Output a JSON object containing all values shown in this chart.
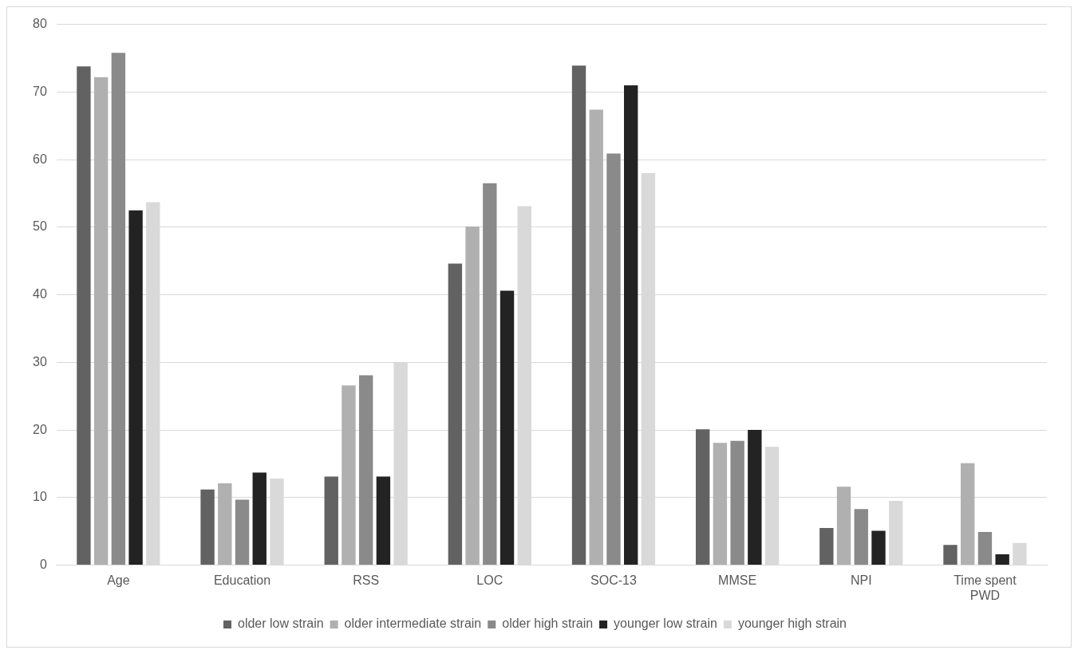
{
  "chart_data": {
    "type": "bar",
    "categories": [
      "Age",
      "Education",
      "RSS",
      "LOC",
      "SOC-13",
      "MMSE",
      "NPI",
      "Time spent PWD"
    ],
    "series": [
      {
        "name": "older low strain",
        "color": "#626262",
        "values": [
          73.8,
          11.2,
          13.1,
          44.6,
          73.9,
          20.1,
          5.5,
          3.0
        ]
      },
      {
        "name": "older intermediate strain",
        "color": "#b0b0b0",
        "values": [
          72.2,
          12.1,
          26.6,
          50.1,
          67.4,
          18.1,
          11.6,
          15.1
        ]
      },
      {
        "name": "older high strain",
        "color": "#8a8a8a",
        "values": [
          75.8,
          9.7,
          28.1,
          56.5,
          60.9,
          18.4,
          8.3,
          4.9
        ]
      },
      {
        "name": "younger low strain",
        "color": "#232323",
        "values": [
          52.5,
          13.7,
          13.1,
          40.6,
          71.0,
          20.0,
          5.1,
          1.6
        ]
      },
      {
        "name": "younger high strain",
        "color": "#d9d9d9",
        "values": [
          53.7,
          12.8,
          30.0,
          53.1,
          58.0,
          17.5,
          9.5,
          3.3
        ]
      }
    ],
    "ylim": [
      0,
      80
    ],
    "yticks": [
      0,
      10,
      20,
      30,
      40,
      50,
      60,
      70,
      80
    ],
    "grid": "y",
    "legend": "bottom"
  }
}
